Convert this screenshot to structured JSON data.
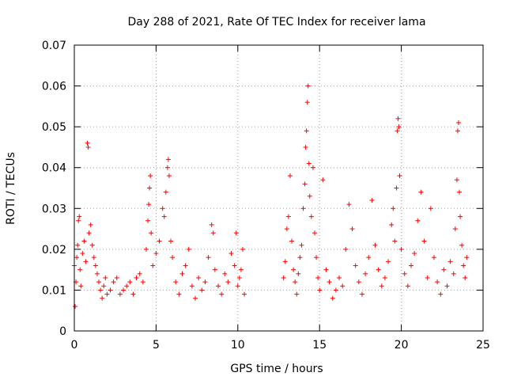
{
  "chart_data": {
    "type": "scatter",
    "title": "Day 288 of 2021, Rate Of TEC Index for receiver lama",
    "xlabel": "GPS time / hours",
    "ylabel": "ROTI / TECUs",
    "xlim": [
      0,
      25
    ],
    "ylim": [
      0,
      0.07
    ],
    "x_ticks": [
      0,
      5,
      10,
      15,
      20,
      25
    ],
    "x_tick_labels": [
      "0",
      "5",
      "10",
      "15",
      "20",
      "25"
    ],
    "y_ticks": [
      0,
      0.01,
      0.02,
      0.03,
      0.04,
      0.05,
      0.06,
      0.07
    ],
    "y_tick_labels": [
      "0",
      "0.01",
      "0.02",
      "0.03",
      "0.04",
      "0.05",
      "0.06",
      "0.07"
    ],
    "grid": true,
    "marker": "plus",
    "color": "#ff0000",
    "series": [
      {
        "points": [
          [
            0.0,
            0.016
          ],
          [
            0.05,
            0.006
          ],
          [
            0.1,
            0.012
          ],
          [
            0.15,
            0.018
          ],
          [
            0.2,
            0.021
          ],
          [
            0.25,
            0.027
          ],
          [
            0.3,
            0.028
          ],
          [
            0.35,
            0.015
          ],
          [
            0.4,
            0.011
          ],
          [
            0.5,
            0.019
          ],
          [
            0.6,
            0.022
          ],
          [
            0.7,
            0.017
          ],
          [
            0.8,
            0.046
          ],
          [
            0.85,
            0.045
          ],
          [
            0.9,
            0.024
          ],
          [
            1.0,
            0.026
          ],
          [
            1.1,
            0.021
          ],
          [
            1.2,
            0.018
          ],
          [
            1.3,
            0.016
          ],
          [
            1.4,
            0.014
          ],
          [
            1.5,
            0.012
          ],
          [
            1.6,
            0.01
          ],
          [
            1.7,
            0.008
          ],
          [
            1.8,
            0.011
          ],
          [
            1.9,
            0.013
          ],
          [
            2.0,
            0.009
          ],
          [
            2.2,
            0.01
          ],
          [
            2.4,
            0.012
          ],
          [
            2.6,
            0.013
          ],
          [
            2.8,
            0.009
          ],
          [
            3.0,
            0.01
          ],
          [
            3.2,
            0.011
          ],
          [
            3.4,
            0.012
          ],
          [
            3.6,
            0.009
          ],
          [
            3.8,
            0.013
          ],
          [
            4.0,
            0.014
          ],
          [
            4.2,
            0.012
          ],
          [
            4.4,
            0.02
          ],
          [
            4.5,
            0.027
          ],
          [
            4.55,
            0.031
          ],
          [
            4.6,
            0.035
          ],
          [
            4.65,
            0.038
          ],
          [
            4.7,
            0.024
          ],
          [
            4.8,
            0.016
          ],
          [
            5.0,
            0.019
          ],
          [
            5.2,
            0.022
          ],
          [
            5.4,
            0.03
          ],
          [
            5.5,
            0.028
          ],
          [
            5.6,
            0.034
          ],
          [
            5.7,
            0.04
          ],
          [
            5.75,
            0.042
          ],
          [
            5.8,
            0.038
          ],
          [
            5.9,
            0.022
          ],
          [
            6.0,
            0.018
          ],
          [
            6.2,
            0.012
          ],
          [
            6.4,
            0.009
          ],
          [
            6.6,
            0.014
          ],
          [
            6.8,
            0.016
          ],
          [
            7.0,
            0.02
          ],
          [
            7.2,
            0.011
          ],
          [
            7.4,
            0.008
          ],
          [
            7.6,
            0.013
          ],
          [
            7.8,
            0.01
          ],
          [
            8.0,
            0.012
          ],
          [
            8.2,
            0.018
          ],
          [
            8.4,
            0.026
          ],
          [
            8.5,
            0.024
          ],
          [
            8.6,
            0.015
          ],
          [
            8.8,
            0.011
          ],
          [
            9.0,
            0.009
          ],
          [
            9.2,
            0.014
          ],
          [
            9.4,
            0.012
          ],
          [
            9.6,
            0.019
          ],
          [
            9.8,
            0.016
          ],
          [
            9.9,
            0.024
          ],
          [
            10.0,
            0.011
          ],
          [
            10.1,
            0.013
          ],
          [
            10.2,
            0.015
          ],
          [
            10.3,
            0.02
          ],
          [
            10.4,
            0.009
          ],
          [
            12.8,
            0.013
          ],
          [
            12.9,
            0.017
          ],
          [
            13.0,
            0.025
          ],
          [
            13.1,
            0.028
          ],
          [
            13.2,
            0.038
          ],
          [
            13.3,
            0.022
          ],
          [
            13.4,
            0.015
          ],
          [
            13.5,
            0.012
          ],
          [
            13.6,
            0.009
          ],
          [
            13.7,
            0.014
          ],
          [
            13.8,
            0.018
          ],
          [
            13.9,
            0.021
          ],
          [
            14.0,
            0.03
          ],
          [
            14.1,
            0.036
          ],
          [
            14.15,
            0.045
          ],
          [
            14.2,
            0.049
          ],
          [
            14.25,
            0.056
          ],
          [
            14.3,
            0.06
          ],
          [
            14.35,
            0.041
          ],
          [
            14.4,
            0.033
          ],
          [
            14.5,
            0.028
          ],
          [
            14.6,
            0.04
          ],
          [
            14.7,
            0.024
          ],
          [
            14.8,
            0.018
          ],
          [
            14.9,
            0.013
          ],
          [
            15.0,
            0.01
          ],
          [
            15.2,
            0.037
          ],
          [
            15.4,
            0.015
          ],
          [
            15.6,
            0.012
          ],
          [
            15.8,
            0.008
          ],
          [
            16.0,
            0.01
          ],
          [
            16.2,
            0.013
          ],
          [
            16.4,
            0.011
          ],
          [
            16.6,
            0.02
          ],
          [
            16.8,
            0.031
          ],
          [
            17.0,
            0.025
          ],
          [
            17.2,
            0.016
          ],
          [
            17.4,
            0.012
          ],
          [
            17.6,
            0.009
          ],
          [
            17.8,
            0.014
          ],
          [
            18.0,
            0.018
          ],
          [
            18.2,
            0.032
          ],
          [
            18.4,
            0.021
          ],
          [
            18.6,
            0.015
          ],
          [
            18.8,
            0.011
          ],
          [
            19.0,
            0.013
          ],
          [
            19.2,
            0.017
          ],
          [
            19.4,
            0.026
          ],
          [
            19.5,
            0.03
          ],
          [
            19.6,
            0.022
          ],
          [
            19.7,
            0.035
          ],
          [
            19.75,
            0.049
          ],
          [
            19.8,
            0.052
          ],
          [
            19.85,
            0.05
          ],
          [
            19.9,
            0.038
          ],
          [
            20.0,
            0.02
          ],
          [
            20.2,
            0.014
          ],
          [
            20.4,
            0.011
          ],
          [
            20.6,
            0.016
          ],
          [
            20.8,
            0.019
          ],
          [
            21.0,
            0.027
          ],
          [
            21.2,
            0.034
          ],
          [
            21.4,
            0.022
          ],
          [
            21.6,
            0.013
          ],
          [
            21.8,
            0.03
          ],
          [
            22.0,
            0.018
          ],
          [
            22.2,
            0.012
          ],
          [
            22.4,
            0.009
          ],
          [
            22.6,
            0.015
          ],
          [
            22.8,
            0.011
          ],
          [
            23.0,
            0.017
          ],
          [
            23.2,
            0.014
          ],
          [
            23.3,
            0.025
          ],
          [
            23.4,
            0.037
          ],
          [
            23.45,
            0.049
          ],
          [
            23.5,
            0.051
          ],
          [
            23.55,
            0.034
          ],
          [
            23.6,
            0.028
          ],
          [
            23.7,
            0.021
          ],
          [
            23.8,
            0.016
          ],
          [
            23.9,
            0.013
          ],
          [
            24.0,
            0.018
          ]
        ]
      }
    ]
  }
}
